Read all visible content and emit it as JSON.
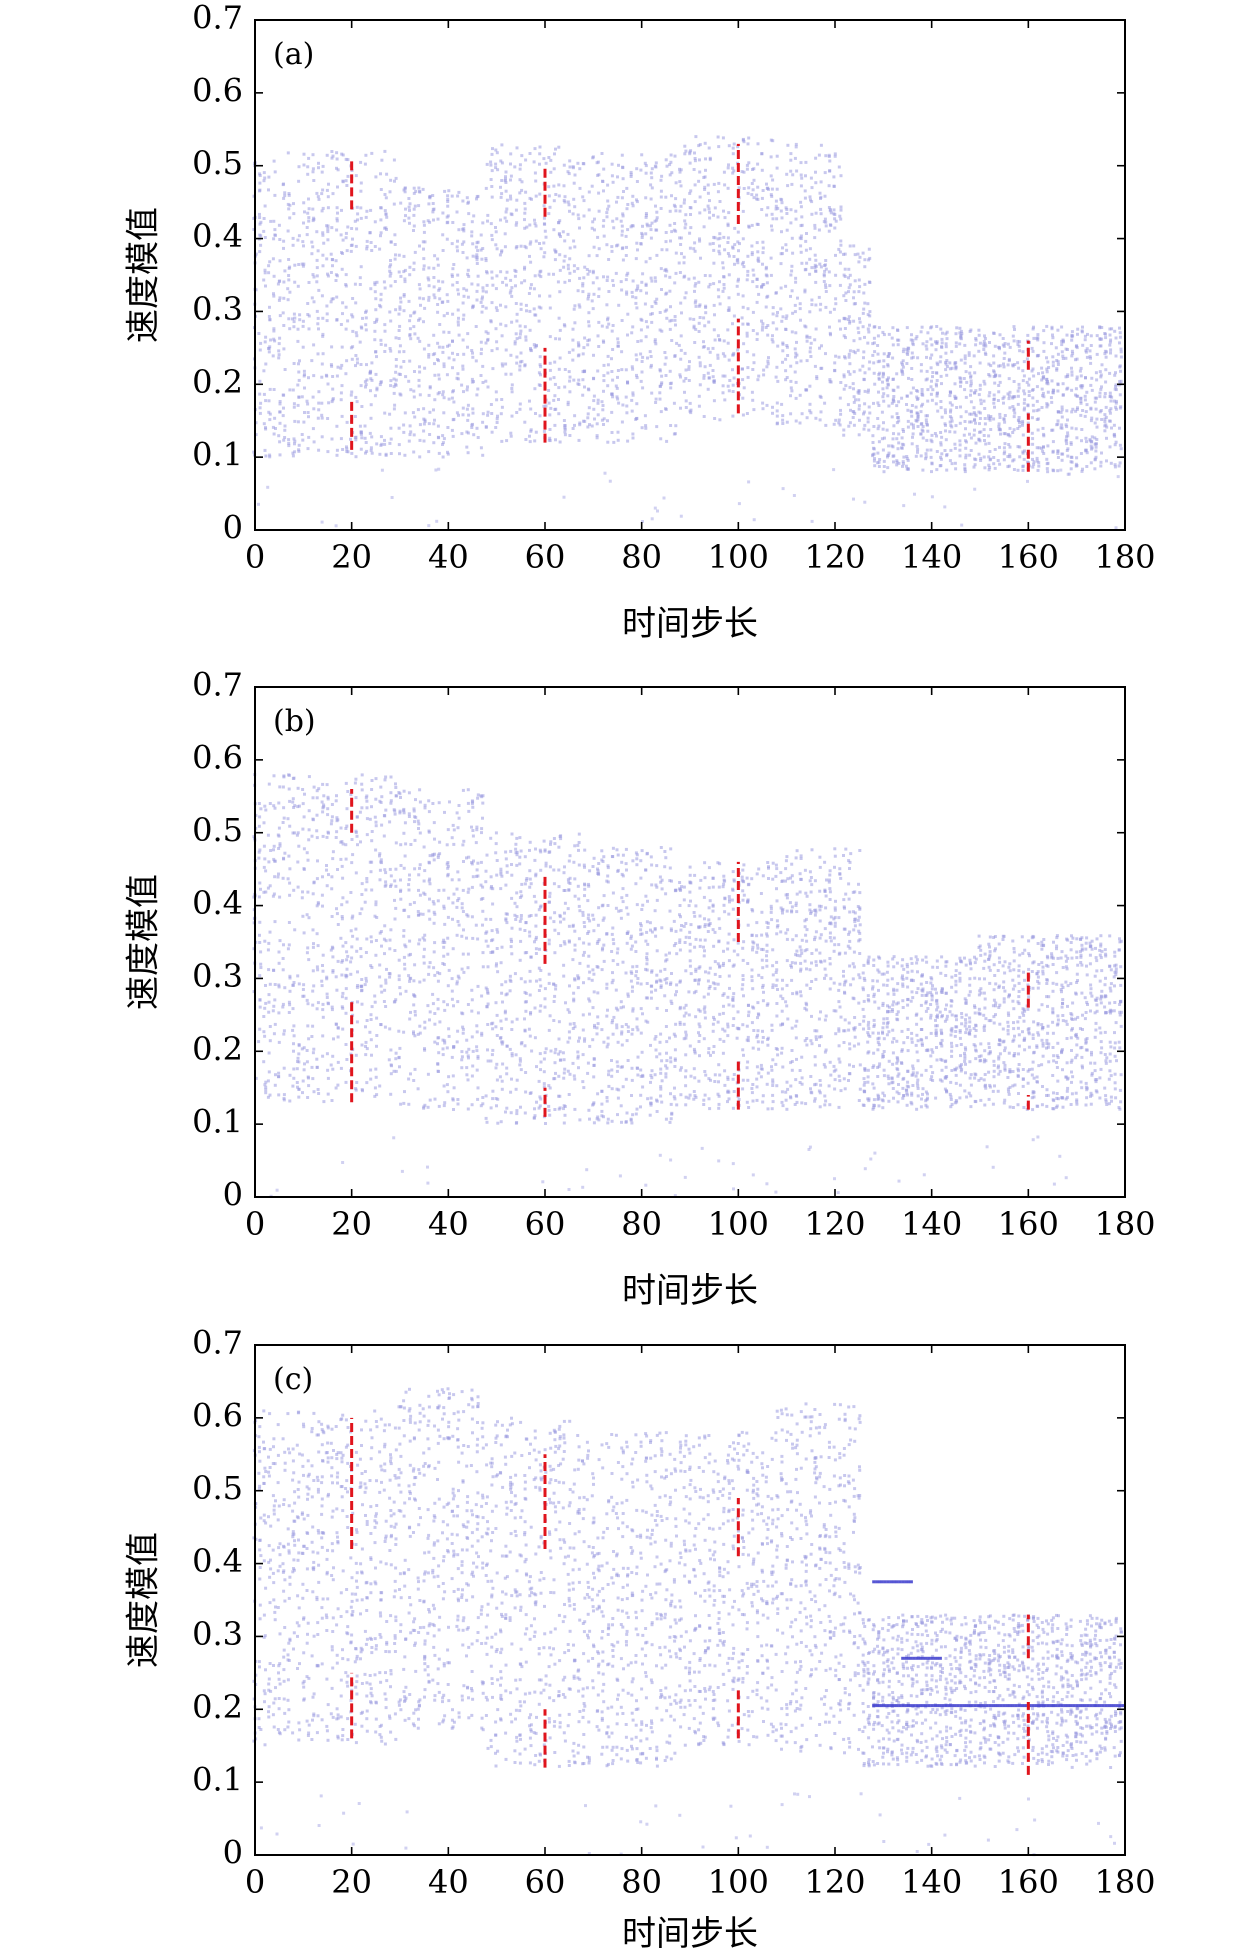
{
  "chart_data": [
    {
      "type": "scatter",
      "panel_label": "(a)",
      "xlabel": "时间步长",
      "ylabel": "速度模值",
      "xlim": [
        0,
        180
      ],
      "ylim": [
        0,
        0.7
      ],
      "xticks": [
        0,
        20,
        40,
        60,
        80,
        100,
        120,
        140,
        160,
        180
      ],
      "xtick_labels": [
        "0",
        "20",
        "40",
        "60",
        "80",
        "100",
        "120",
        "140",
        "160",
        "180"
      ],
      "yticks": [
        0,
        0.1,
        0.2,
        0.3,
        0.4,
        0.5,
        0.6,
        0.7
      ],
      "ytick_labels": [
        "0",
        "0.1",
        "0.2",
        "0.3",
        "0.4",
        "0.5",
        "0.6",
        "0.7"
      ],
      "point_color": "#9a9ae0",
      "marker_color": "#e0141c",
      "point_bands": [
        {
          "x_range": [
            0,
            30
          ],
          "y_range": [
            0.1,
            0.52
          ]
        },
        {
          "x_range": [
            30,
            48
          ],
          "y_range": [
            0.1,
            0.47
          ]
        },
        {
          "x_range": [
            48,
            68
          ],
          "y_range": [
            0.12,
            0.53
          ]
        },
        {
          "x_range": [
            68,
            88
          ],
          "y_range": [
            0.12,
            0.52
          ]
        },
        {
          "x_range": [
            88,
            108
          ],
          "y_range": [
            0.15,
            0.54
          ]
        },
        {
          "x_range": [
            108,
            122
          ],
          "y_range": [
            0.14,
            0.53
          ]
        },
        {
          "x_range": [
            122,
            128
          ],
          "y_range": [
            0.13,
            0.4
          ]
        },
        {
          "x_range": [
            128,
            180
          ],
          "y_range": [
            0.08,
            0.28
          ]
        }
      ],
      "marker_segments": [
        {
          "x": 20,
          "y1": 0.11,
          "y2": 0.18
        },
        {
          "x": 20,
          "y1": 0.44,
          "y2": 0.51
        },
        {
          "x": 60,
          "y1": 0.12,
          "y2": 0.25
        },
        {
          "x": 60,
          "y1": 0.43,
          "y2": 0.5
        },
        {
          "x": 100,
          "y1": 0.16,
          "y2": 0.29
        },
        {
          "x": 100,
          "y1": 0.42,
          "y2": 0.53
        },
        {
          "x": 160,
          "y1": 0.08,
          "y2": 0.16
        },
        {
          "x": 160,
          "y1": 0.22,
          "y2": 0.26
        }
      ]
    },
    {
      "type": "scatter",
      "panel_label": "(b)",
      "xlabel": "时间步长",
      "ylabel": "速度模值",
      "xlim": [
        0,
        180
      ],
      "ylim": [
        0,
        0.7
      ],
      "xticks": [
        0,
        20,
        40,
        60,
        80,
        100,
        120,
        140,
        160,
        180
      ],
      "xtick_labels": [
        "0",
        "20",
        "40",
        "60",
        "80",
        "100",
        "120",
        "140",
        "160",
        "180"
      ],
      "yticks": [
        0,
        0.1,
        0.2,
        0.3,
        0.4,
        0.5,
        0.6,
        0.7
      ],
      "ytick_labels": [
        "0",
        "0.1",
        "0.2",
        "0.3",
        "0.4",
        "0.5",
        "0.6",
        "0.7"
      ],
      "point_color": "#9a9ae0",
      "marker_color": "#e0141c",
      "point_bands": [
        {
          "x_range": [
            0,
            30
          ],
          "y_range": [
            0.13,
            0.58
          ]
        },
        {
          "x_range": [
            30,
            48
          ],
          "y_range": [
            0.12,
            0.56
          ]
        },
        {
          "x_range": [
            48,
            68
          ],
          "y_range": [
            0.1,
            0.5
          ]
        },
        {
          "x_range": [
            68,
            88
          ],
          "y_range": [
            0.1,
            0.48
          ]
        },
        {
          "x_range": [
            88,
            108
          ],
          "y_range": [
            0.12,
            0.46
          ]
        },
        {
          "x_range": [
            108,
            126
          ],
          "y_range": [
            0.12,
            0.48
          ]
        },
        {
          "x_range": [
            126,
            150
          ],
          "y_range": [
            0.12,
            0.33
          ]
        },
        {
          "x_range": [
            150,
            180
          ],
          "y_range": [
            0.12,
            0.36
          ]
        }
      ],
      "marker_segments": [
        {
          "x": 20,
          "y1": 0.13,
          "y2": 0.27
        },
        {
          "x": 20,
          "y1": 0.5,
          "y2": 0.56
        },
        {
          "x": 60,
          "y1": 0.11,
          "y2": 0.15
        },
        {
          "x": 60,
          "y1": 0.32,
          "y2": 0.44
        },
        {
          "x": 100,
          "y1": 0.12,
          "y2": 0.19
        },
        {
          "x": 100,
          "y1": 0.35,
          "y2": 0.46
        },
        {
          "x": 160,
          "y1": 0.12,
          "y2": 0.14
        },
        {
          "x": 160,
          "y1": 0.26,
          "y2": 0.31
        }
      ]
    },
    {
      "type": "scatter",
      "panel_label": "(c)",
      "xlabel": "时间步长",
      "ylabel": "速度模值",
      "xlim": [
        0,
        180
      ],
      "ylim": [
        0,
        0.7
      ],
      "xticks": [
        0,
        20,
        40,
        60,
        80,
        100,
        120,
        140,
        160,
        180
      ],
      "xtick_labels": [
        "0",
        "20",
        "40",
        "60",
        "80",
        "100",
        "120",
        "140",
        "160",
        "180"
      ],
      "yticks": [
        0,
        0.1,
        0.2,
        0.3,
        0.4,
        0.5,
        0.6,
        0.7
      ],
      "ytick_labels": [
        "0",
        "0.1",
        "0.2",
        "0.3",
        "0.4",
        "0.5",
        "0.6",
        "0.7"
      ],
      "point_color": "#9a9ae0",
      "marker_color": "#e0141c",
      "point_bands": [
        {
          "x_range": [
            0,
            30
          ],
          "y_range": [
            0.15,
            0.61
          ]
        },
        {
          "x_range": [
            30,
            48
          ],
          "y_range": [
            0.17,
            0.64
          ]
        },
        {
          "x_range": [
            48,
            68
          ],
          "y_range": [
            0.12,
            0.6
          ]
        },
        {
          "x_range": [
            68,
            88
          ],
          "y_range": [
            0.12,
            0.58
          ]
        },
        {
          "x_range": [
            88,
            108
          ],
          "y_range": [
            0.15,
            0.58
          ]
        },
        {
          "x_range": [
            108,
            126
          ],
          "y_range": [
            0.14,
            0.62
          ]
        },
        {
          "x_range": [
            126,
            180
          ],
          "y_range": [
            0.12,
            0.33
          ]
        }
      ],
      "dense_rows": [
        {
          "x_range": [
            128,
            180
          ],
          "y": 0.205
        },
        {
          "x_range": [
            134,
            142
          ],
          "y": 0.27
        },
        {
          "x_range": [
            128,
            136
          ],
          "y": 0.375
        }
      ],
      "marker_segments": [
        {
          "x": 20,
          "y1": 0.16,
          "y2": 0.25
        },
        {
          "x": 20,
          "y1": 0.42,
          "y2": 0.6
        },
        {
          "x": 60,
          "y1": 0.12,
          "y2": 0.2
        },
        {
          "x": 60,
          "y1": 0.42,
          "y2": 0.55
        },
        {
          "x": 100,
          "y1": 0.16,
          "y2": 0.23
        },
        {
          "x": 100,
          "y1": 0.41,
          "y2": 0.49
        },
        {
          "x": 160,
          "y1": 0.11,
          "y2": 0.21
        },
        {
          "x": 160,
          "y1": 0.27,
          "y2": 0.33
        }
      ]
    }
  ]
}
